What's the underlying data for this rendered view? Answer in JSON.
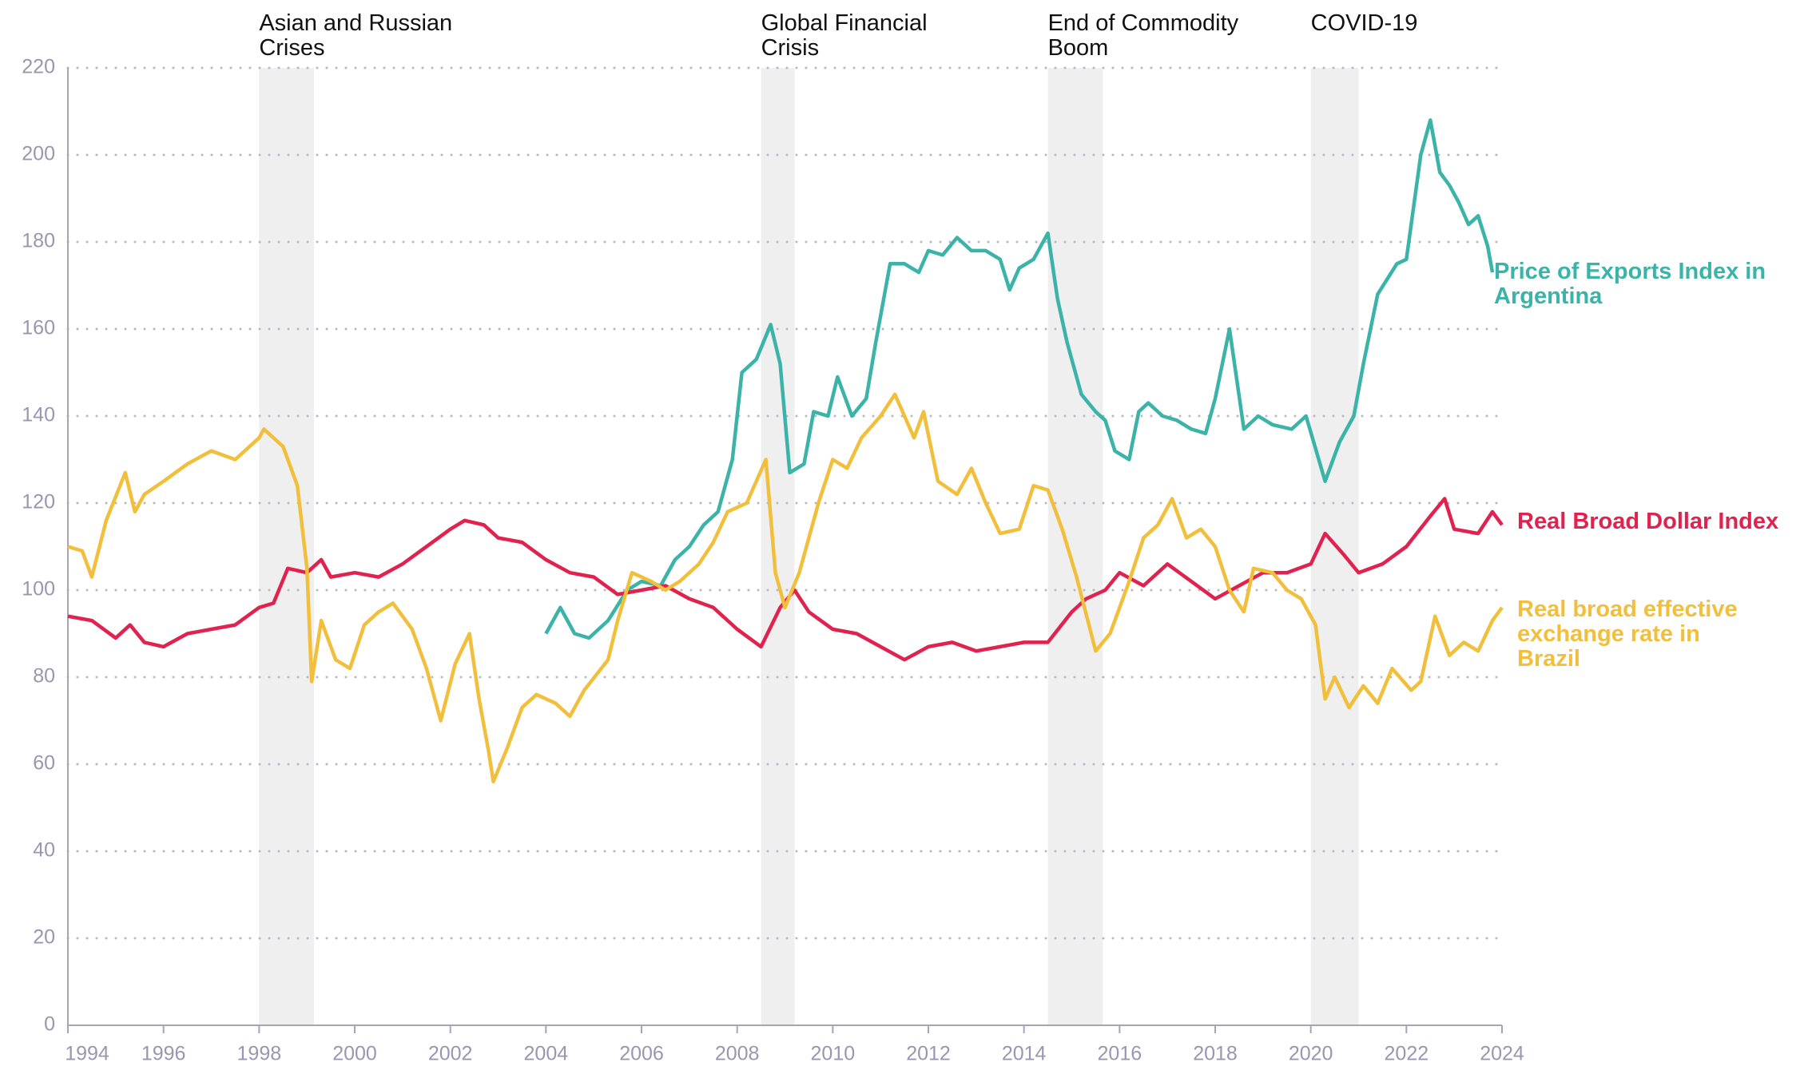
{
  "chart_data": {
    "type": "line",
    "xlim": [
      1994,
      2024
    ],
    "xticks": [
      1994,
      1996,
      1998,
      2000,
      2002,
      2004,
      2006,
      2008,
      2010,
      2012,
      2014,
      2016,
      2018,
      2020,
      2022,
      2024
    ],
    "ylim": [
      0,
      220
    ],
    "yticks": [
      0,
      20,
      40,
      60,
      80,
      100,
      120,
      140,
      160,
      180,
      200,
      220
    ],
    "grid": true,
    "shaded_periods": [
      {
        "label": "Asian and Russian Crises",
        "start": 1998.0,
        "end": 1999.15
      },
      {
        "label": "Global Financial Crisis",
        "start": 2008.5,
        "end": 2009.2
      },
      {
        "label": "End of Commodity Boom",
        "start": 2014.5,
        "end": 2015.65
      },
      {
        "label": "COVID-19",
        "start": 2020.0,
        "end": 2021.0
      }
    ],
    "series": [
      {
        "name": "Price of Exports Index in Argentina",
        "color": "#3bb3a8",
        "x": [
          2004.0,
          2004.3,
          2004.6,
          2004.9,
          2005.3,
          2005.7,
          2006.0,
          2006.4,
          2006.7,
          2007.0,
          2007.3,
          2007.6,
          2007.9,
          2008.1,
          2008.4,
          2008.7,
          2008.9,
          2009.1,
          2009.4,
          2009.6,
          2009.9,
          2010.1,
          2010.4,
          2010.7,
          2010.9,
          2011.2,
          2011.5,
          2011.8,
          2012.0,
          2012.3,
          2012.6,
          2012.9,
          2013.2,
          2013.5,
          2013.7,
          2013.9,
          2014.2,
          2014.5,
          2014.7,
          2014.9,
          2015.2,
          2015.5,
          2015.7,
          2015.9,
          2016.2,
          2016.4,
          2016.6,
          2016.9,
          2017.2,
          2017.5,
          2017.8,
          2018.0,
          2018.3,
          2018.6,
          2018.9,
          2019.2,
          2019.6,
          2019.9,
          2020.3,
          2020.6,
          2020.9,
          2021.1,
          2021.4,
          2021.8,
          2022.0,
          2022.3,
          2022.5,
          2022.7,
          2022.9,
          2023.1,
          2023.3,
          2023.5,
          2023.7,
          2023.8
        ],
        "values": [
          90,
          96,
          90,
          89,
          93,
          100,
          102,
          101,
          107,
          110,
          115,
          118,
          130,
          150,
          153,
          161,
          152,
          127,
          129,
          141,
          140,
          149,
          140,
          144,
          157,
          175,
          175,
          173,
          178,
          177,
          181,
          178,
          178,
          176,
          169,
          174,
          176,
          182,
          167,
          157,
          145,
          141,
          139,
          132,
          130,
          141,
          143,
          140,
          139,
          137,
          136,
          144,
          160,
          137,
          140,
          138,
          137,
          140,
          125,
          134,
          140,
          152,
          168,
          175,
          176,
          200,
          208,
          196,
          193,
          189,
          184,
          186,
          179,
          173
        ]
      },
      {
        "name": "Real Broad Dollar Index",
        "color": "#e0234e",
        "x": [
          1994.0,
          1994.5,
          1995.0,
          1995.3,
          1995.6,
          1996.0,
          1996.5,
          1997.0,
          1997.5,
          1998.0,
          1998.3,
          1998.6,
          1999.0,
          1999.3,
          1999.5,
          2000.0,
          2000.5,
          2001.0,
          2001.5,
          2002.0,
          2002.3,
          2002.7,
          2003.0,
          2003.5,
          2004.0,
          2004.5,
          2005.0,
          2005.5,
          2006.0,
          2006.5,
          2007.0,
          2007.5,
          2008.0,
          2008.5,
          2008.9,
          2009.2,
          2009.5,
          2010.0,
          2010.5,
          2011.0,
          2011.5,
          2012.0,
          2012.5,
          2013.0,
          2013.5,
          2014.0,
          2014.5,
          2015.0,
          2015.3,
          2015.7,
          2016.0,
          2016.5,
          2017.0,
          2017.5,
          2018.0,
          2018.5,
          2019.0,
          2019.5,
          2020.0,
          2020.3,
          2020.7,
          2021.0,
          2021.5,
          2022.0,
          2022.5,
          2022.8,
          2023.0,
          2023.5,
          2023.8,
          2024.0
        ],
        "values": [
          94,
          93,
          89,
          92,
          88,
          87,
          90,
          91,
          92,
          96,
          97,
          105,
          104,
          107,
          103,
          104,
          103,
          106,
          110,
          114,
          116,
          115,
          112,
          111,
          107,
          104,
          103,
          99,
          100,
          101,
          98,
          96,
          91,
          87,
          96,
          100,
          95,
          91,
          90,
          87,
          84,
          87,
          88,
          86,
          87,
          88,
          88,
          95,
          98,
          100,
          104,
          101,
          106,
          102,
          98,
          101,
          104,
          104,
          106,
          113,
          108,
          104,
          106,
          110,
          117,
          121,
          114,
          113,
          118,
          115
        ]
      },
      {
        "name": "Real broad effective exchange rate in Brazil",
        "color": "#f2bf3c",
        "x": [
          1994.0,
          1994.3,
          1994.5,
          1994.8,
          1995.2,
          1995.4,
          1995.6,
          1996.0,
          1996.5,
          1997.0,
          1997.5,
          1998.0,
          1998.1,
          1998.5,
          1998.8,
          1999.0,
          1999.1,
          1999.3,
          1999.6,
          1999.9,
          2000.2,
          2000.5,
          2000.8,
          2001.2,
          2001.5,
          2001.8,
          2002.1,
          2002.4,
          2002.6,
          2002.8,
          2002.9,
          2003.2,
          2003.5,
          2003.8,
          2004.2,
          2004.5,
          2004.8,
          2005.3,
          2005.5,
          2005.8,
          2006.2,
          2006.5,
          2006.8,
          2007.2,
          2007.5,
          2007.8,
          2008.2,
          2008.6,
          2008.8,
          2009.0,
          2009.3,
          2009.7,
          2010.0,
          2010.3,
          2010.6,
          2011.0,
          2011.3,
          2011.5,
          2011.7,
          2011.9,
          2012.2,
          2012.6,
          2012.9,
          2013.2,
          2013.5,
          2013.9,
          2014.2,
          2014.5,
          2014.8,
          2015.1,
          2015.5,
          2015.8,
          2016.2,
          2016.5,
          2016.8,
          2017.1,
          2017.4,
          2017.7,
          2018.0,
          2018.3,
          2018.6,
          2018.8,
          2019.2,
          2019.5,
          2019.8,
          2020.1,
          2020.3,
          2020.5,
          2020.8,
          2021.1,
          2021.4,
          2021.7,
          2022.1,
          2022.3,
          2022.6,
          2022.9,
          2023.2,
          2023.5,
          2023.8,
          2024.0
        ],
        "values": [
          110,
          109,
          103,
          116,
          127,
          118,
          122,
          125,
          129,
          132,
          130,
          135,
          137,
          133,
          124,
          105,
          79,
          93,
          84,
          82,
          92,
          95,
          97,
          91,
          82,
          70,
          83,
          90,
          75,
          63,
          56,
          64,
          73,
          76,
          74,
          71,
          77,
          84,
          93,
          104,
          102,
          100,
          102,
          106,
          111,
          118,
          120,
          130,
          104,
          96,
          104,
          120,
          130,
          128,
          135,
          140,
          145,
          140,
          135,
          141,
          125,
          122,
          128,
          120,
          113,
          114,
          124,
          123,
          114,
          103,
          86,
          90,
          102,
          112,
          115,
          121,
          112,
          114,
          110,
          100,
          95,
          105,
          104,
          100,
          98,
          92,
          75,
          80,
          73,
          78,
          74,
          82,
          77,
          79,
          94,
          85,
          88,
          86,
          93,
          96
        ]
      }
    ]
  }
}
